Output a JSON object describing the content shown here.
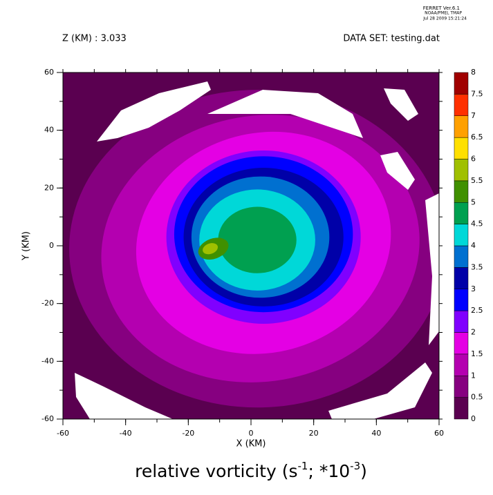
{
  "chart_data": {
    "type": "contour",
    "header": [
      "FERRET  Ver.6.1",
      "NOAA/PMEL TMAP",
      "Jul 28 2009 15:21:24"
    ],
    "subtitle_left": "Z (KM) : 3.033",
    "subtitle_right": "DATA SET: testing.dat",
    "xlabel": "X (KM)",
    "ylabel": "Y (KM)",
    "title_parts": [
      "relative vorticity (s",
      "-1",
      "; *10",
      "-3",
      ")"
    ],
    "xlim": [
      -60,
      60
    ],
    "ylim": [
      -60,
      60
    ],
    "xticks": [
      -60,
      -40,
      -20,
      0,
      20,
      40,
      60
    ],
    "yticks": [
      -60,
      -40,
      -20,
      0,
      20,
      40,
      60
    ],
    "levels": [
      0,
      0.5,
      1,
      1.5,
      2,
      2.5,
      3,
      3.5,
      4,
      4.5,
      5,
      5.5,
      6,
      6.5,
      7,
      7.5,
      8
    ],
    "colors": [
      "#5a0050",
      "#860080",
      "#b400b0",
      "#e400e4",
      "#8000ff",
      "#0000ff",
      "#0000a8",
      "#0070d0",
      "#00d8d8",
      "#00a050",
      "#409000",
      "#a0c000",
      "#ffe000",
      "#ffa000",
      "#ff3000",
      "#a00000"
    ]
  }
}
